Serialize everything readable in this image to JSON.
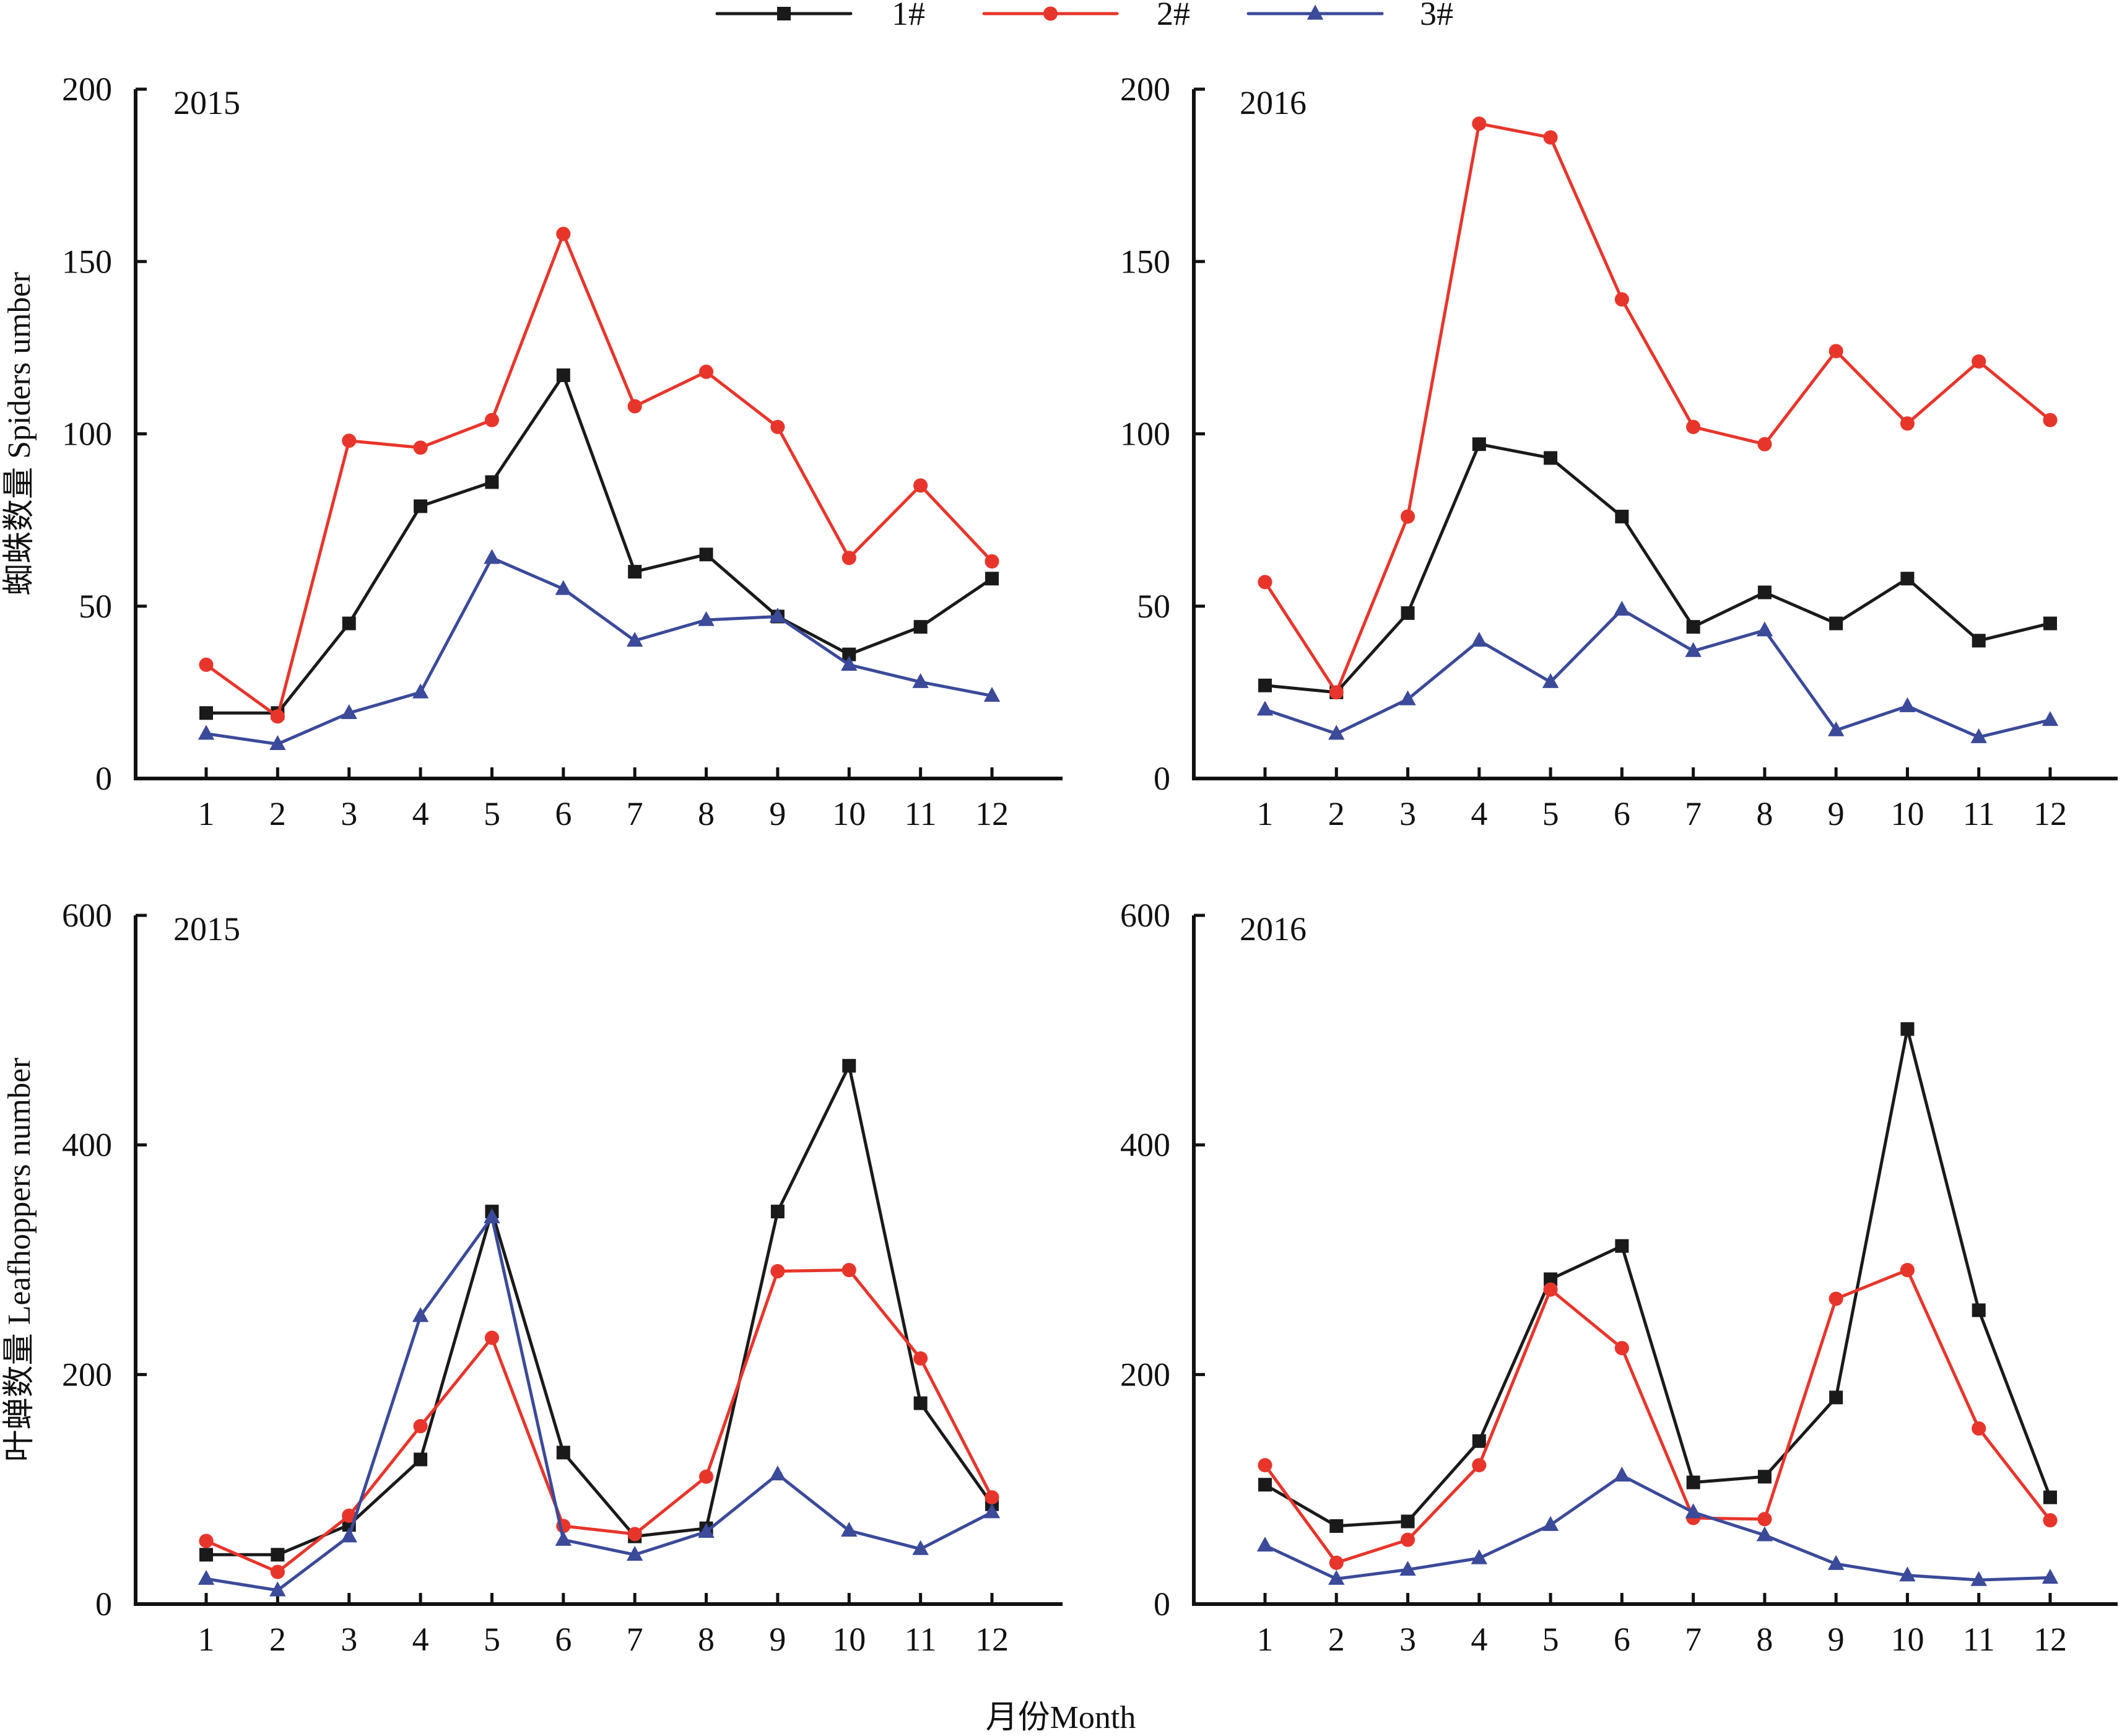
{
  "chart_data": {
    "type": "line",
    "legend": {
      "placement": "top-center",
      "entries": [
        {
          "name": "1#",
          "color": "#1a1a1a",
          "marker": "square"
        },
        {
          "name": "2#",
          "color": "#e8352b",
          "marker": "circle"
        },
        {
          "name": "3#",
          "color": "#3b4a99",
          "marker": "triangle"
        }
      ]
    },
    "xlabel": "月份Month",
    "categories": [
      "1",
      "2",
      "3",
      "4",
      "5",
      "6",
      "7",
      "8",
      "9",
      "10",
      "11",
      "12"
    ],
    "panels": [
      {
        "id": "spiders-2015",
        "title": "2015",
        "ylabel": "蜘蛛数量  Spiders umber",
        "ylim": [
          0,
          200
        ],
        "yticks": [
          0,
          50,
          100,
          150,
          200
        ],
        "series": [
          {
            "name": "1#",
            "values": [
              19,
              19,
              45,
              79,
              86,
              117,
              60,
              65,
              47,
              36,
              44,
              58
            ]
          },
          {
            "name": "2#",
            "values": [
              33,
              18,
              98,
              96,
              104,
              158,
              108,
              118,
              102,
              64,
              85,
              63
            ]
          },
          {
            "name": "3#",
            "values": [
              13,
              10,
              19,
              25,
              64,
              55,
              40,
              46,
              47,
              33,
              28,
              24
            ]
          }
        ]
      },
      {
        "id": "spiders-2016",
        "title": "2016",
        "ylabel": "",
        "ylim": [
          0,
          200
        ],
        "yticks": [
          0,
          50,
          100,
          150,
          200
        ],
        "series": [
          {
            "name": "1#",
            "values": [
              27,
              25,
              48,
              97,
              93,
              76,
              44,
              54,
              45,
              58,
              40,
              45
            ]
          },
          {
            "name": "2#",
            "values": [
              57,
              25,
              76,
              190,
              186,
              139,
              102,
              97,
              124,
              103,
              121,
              104
            ]
          },
          {
            "name": "3#",
            "values": [
              20,
              13,
              23,
              40,
              28,
              49,
              37,
              43,
              14,
              21,
              12,
              17
            ]
          }
        ]
      },
      {
        "id": "leafhoppers-2015",
        "title": "2015",
        "ylabel": "叶蝉数量  Leafhoppers number",
        "ylim": [
          0,
          600
        ],
        "yticks": [
          0,
          200,
          400,
          600
        ],
        "series": [
          {
            "name": "1#",
            "values": [
              43,
              43,
              69,
              126,
              342,
              132,
              59,
              66,
              342,
              469,
              175,
              87
            ]
          },
          {
            "name": "2#",
            "values": [
              55,
              28,
              77,
              155,
              232,
              68,
              61,
              111,
              290,
              291,
              214,
              93
            ]
          },
          {
            "name": "3#",
            "values": [
              22,
              12,
              59,
              251,
              337,
              56,
              43,
              63,
              113,
              64,
              48,
              80
            ]
          }
        ]
      },
      {
        "id": "leafhoppers-2016",
        "title": "2016",
        "ylabel": "",
        "ylim": [
          0,
          600
        ],
        "yticks": [
          0,
          200,
          400,
          600
        ],
        "series": [
          {
            "name": "1#",
            "values": [
              104,
              68,
              72,
              142,
              283,
              312,
              106,
              111,
              180,
              501,
              256,
              93
            ]
          },
          {
            "name": "2#",
            "values": [
              121,
              36,
              56,
              121,
              274,
              223,
              75,
              74,
              266,
              291,
              153,
              73
            ]
          },
          {
            "name": "3#",
            "values": [
              51,
              22,
              30,
              40,
              69,
              112,
              80,
              60,
              35,
              25,
              21,
              23
            ]
          }
        ]
      }
    ]
  }
}
